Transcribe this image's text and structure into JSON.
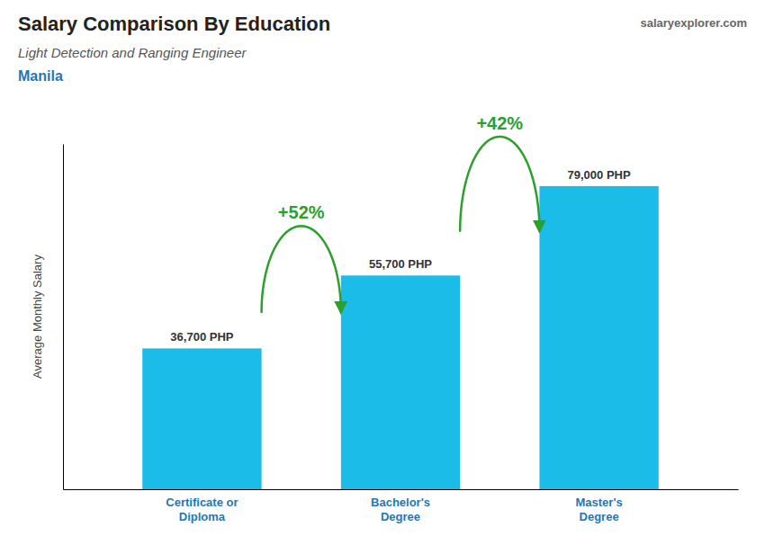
{
  "chart_data": {
    "type": "bar",
    "title": "Salary Comparison By Education",
    "subtitle": [
      "Light Detection and Ranging Engineer",
      "Manila"
    ],
    "source": "salaryexplorer.com",
    "ylabel": "Average Monthly Salary",
    "categories": [
      "Certificate or\nDiploma",
      "Bachelor's\nDegree",
      "Master's\nDegree"
    ],
    "values": [
      36700,
      55700,
      79000
    ],
    "value_labels": [
      "36,700 PHP",
      "55,700 PHP",
      "79,000 PHP"
    ],
    "data_labels": true,
    "annotations": [
      "+52%",
      "+42%"
    ],
    "color": "#1BBDE8",
    "ylim": [
      0,
      90000
    ],
    "tick_labels": "x",
    "grid": false
  }
}
